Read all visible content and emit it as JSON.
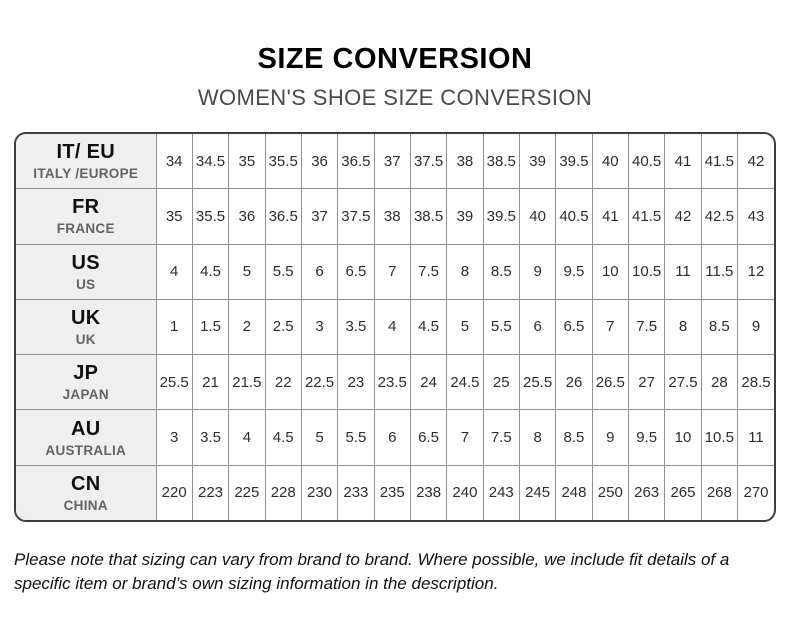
{
  "header": {
    "title": "SIZE CONVERSION",
    "subtitle": "WOMEN'S SHOE SIZE CONVERSION"
  },
  "chart_data": {
    "type": "table",
    "title": "SIZE CONVERSION",
    "subtitle": "WOMEN'S SHOE SIZE CONVERSION",
    "rows": [
      {
        "code": "IT/ EU",
        "region": "ITALY /EUROPE",
        "values": [
          "34",
          "34.5",
          "35",
          "35.5",
          "36",
          "36.5",
          "37",
          "37.5",
          "38",
          "38.5",
          "39",
          "39.5",
          "40",
          "40.5",
          "41",
          "41.5",
          "42"
        ]
      },
      {
        "code": "FR",
        "region": "FRANCE",
        "values": [
          "35",
          "35.5",
          "36",
          "36.5",
          "37",
          "37.5",
          "38",
          "38.5",
          "39",
          "39.5",
          "40",
          "40.5",
          "41",
          "41.5",
          "42",
          "42.5",
          "43"
        ]
      },
      {
        "code": "US",
        "region": "US",
        "values": [
          "4",
          "4.5",
          "5",
          "5.5",
          "6",
          "6.5",
          "7",
          "7.5",
          "8",
          "8.5",
          "9",
          "9.5",
          "10",
          "10.5",
          "11",
          "11.5",
          "12"
        ]
      },
      {
        "code": "UK",
        "region": "UK",
        "values": [
          "1",
          "1.5",
          "2",
          "2.5",
          "3",
          "3.5",
          "4",
          "4.5",
          "5",
          "5.5",
          "6",
          "6.5",
          "7",
          "7.5",
          "8",
          "8.5",
          "9"
        ]
      },
      {
        "code": "JP",
        "region": "JAPAN",
        "values": [
          "25.5",
          "21",
          "21.5",
          "22",
          "22.5",
          "23",
          "23.5",
          "24",
          "24.5",
          "25",
          "25.5",
          "26",
          "26.5",
          "27",
          "27.5",
          "28",
          "28.5"
        ]
      },
      {
        "code": "AU",
        "region": "AUSTRALIA",
        "values": [
          "3",
          "3.5",
          "4",
          "4.5",
          "5",
          "5.5",
          "6",
          "6.5",
          "7",
          "7.5",
          "8",
          "8.5",
          "9",
          "9.5",
          "10",
          "10.5",
          "11"
        ]
      },
      {
        "code": "CN",
        "region": "CHINA",
        "values": [
          "220",
          "223",
          "225",
          "228",
          "230",
          "233",
          "235",
          "238",
          "240",
          "243",
          "245",
          "248",
          "250",
          "263",
          "265",
          "268",
          "270"
        ]
      }
    ]
  },
  "footer": {
    "note": "Please note that sizing can vary from brand to brand. Where possible, we include fit details of a specific item or brand’s own sizing information in the description."
  },
  "colors": {
    "bg": "#ffffff",
    "title_color": "#000000",
    "subtitle_color": "#4a4a4a",
    "outer_border": "#3d3d3d",
    "inner_border": "#8f8f8f",
    "label_bg": "#efefef",
    "value_color": "#2e2e2e",
    "note_color": "#111111"
  }
}
